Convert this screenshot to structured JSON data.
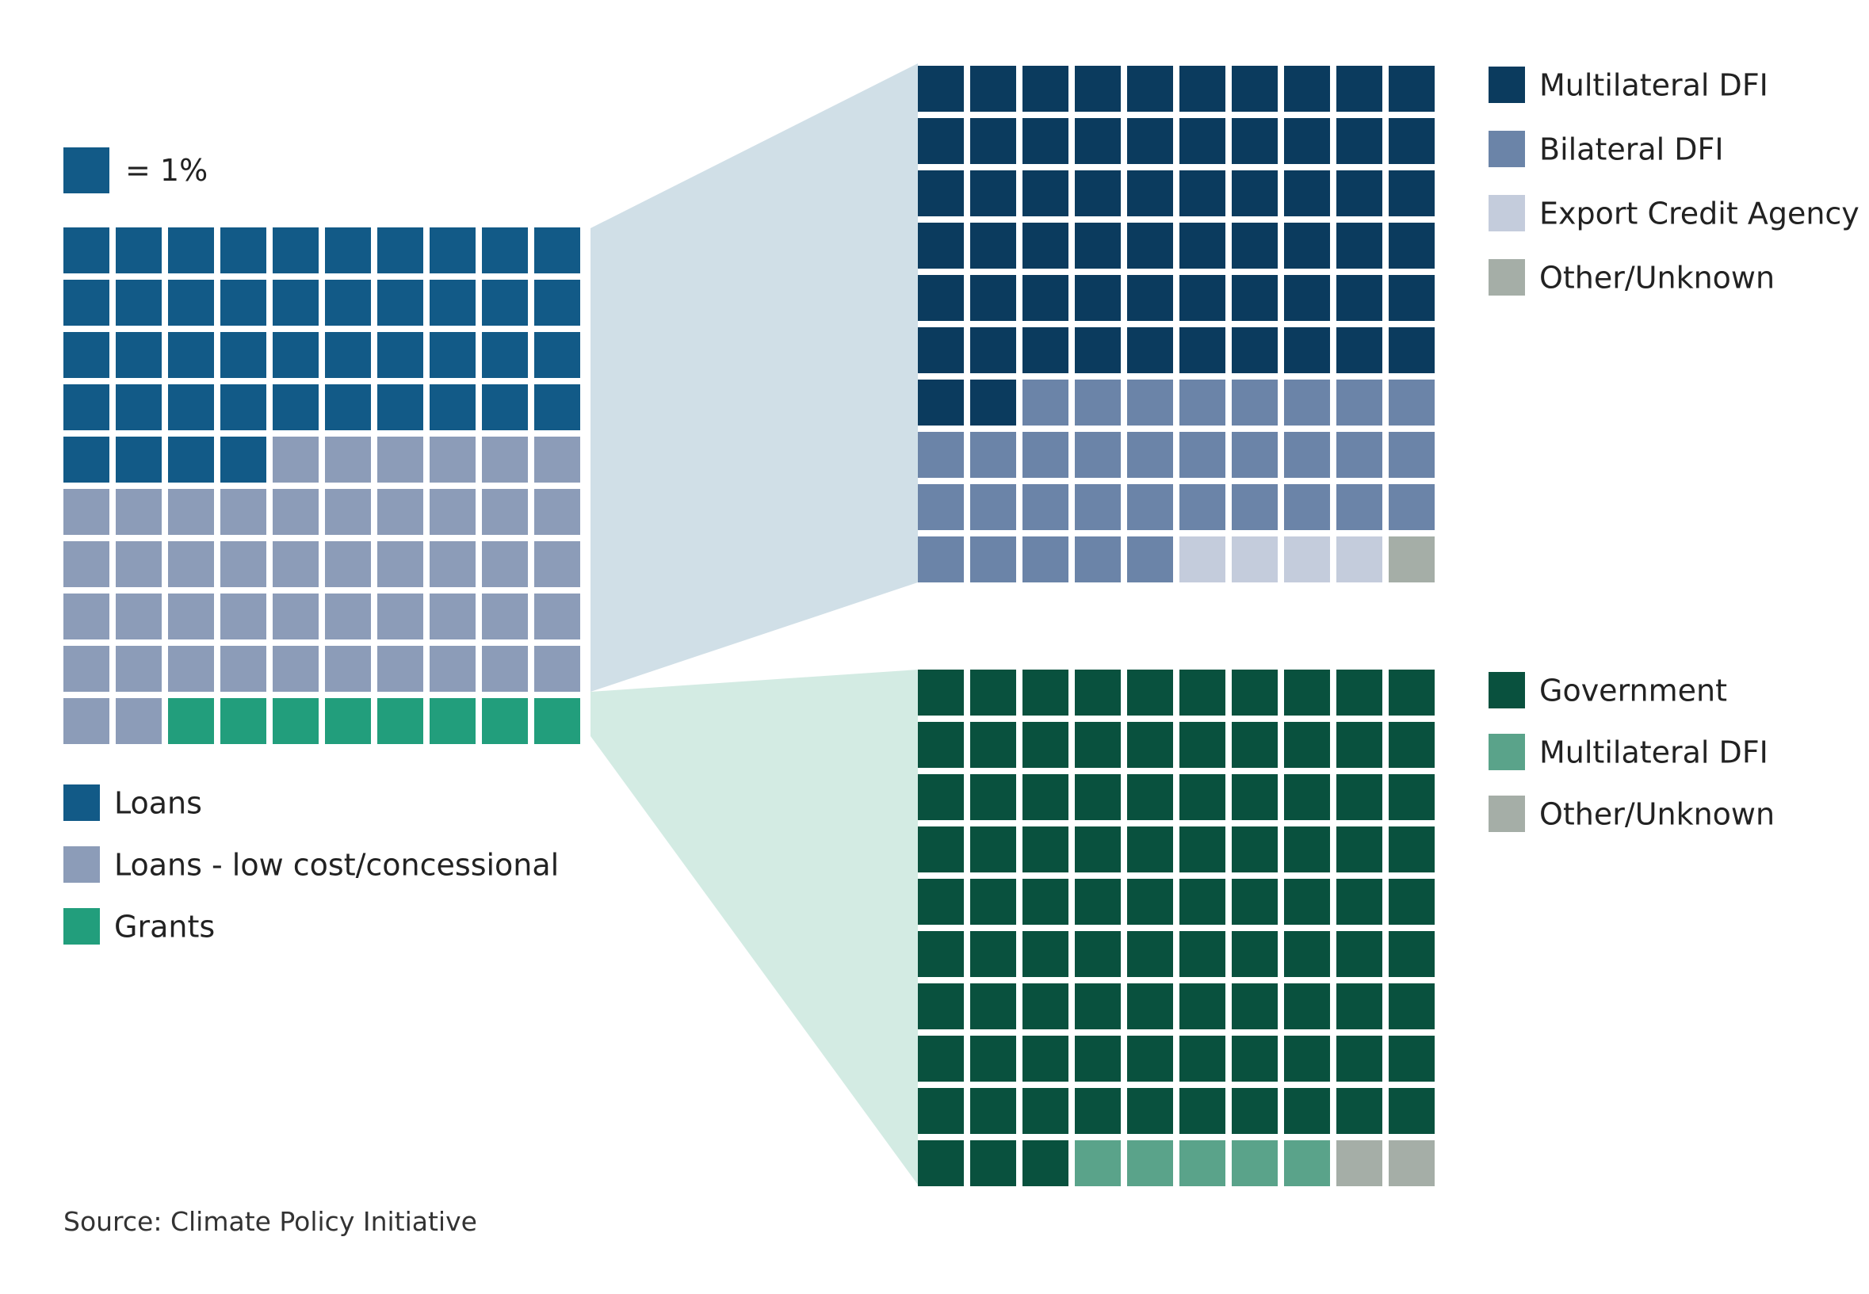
{
  "chart_data": [
    {
      "type": "waffle",
      "unit_label": "= 1%",
      "total": 100,
      "series": [
        {
          "name": "Loans",
          "values": [
            44
          ],
          "color": "#125a87"
        },
        {
          "name": "Loans - low cost/concessional",
          "values": [
            48
          ],
          "color": "#8c9cb8"
        },
        {
          "name": "Grants",
          "values": [
            8
          ],
          "color": "#229e7c"
        }
      ]
    },
    {
      "type": "waffle",
      "total": 100,
      "series": [
        {
          "name": "Multilateral DFI",
          "values": [
            62
          ],
          "color": "#0b3b5e"
        },
        {
          "name": "Bilateral DFI",
          "values": [
            33
          ],
          "color": "#6b84a8"
        },
        {
          "name": "Export Credit Agency",
          "values": [
            4
          ],
          "color": "#c4ccdc"
        },
        {
          "name": "Other/Unknown",
          "values": [
            1
          ],
          "color": "#a5aea7"
        }
      ]
    },
    {
      "type": "waffle",
      "total": 100,
      "series": [
        {
          "name": "Government",
          "values": [
            93
          ],
          "color": "#09513e"
        },
        {
          "name": "Multilateral DFI",
          "values": [
            5
          ],
          "color": "#5aa38a"
        },
        {
          "name": "Other/Unknown",
          "values": [
            2
          ],
          "color": "#a5aea7"
        }
      ]
    }
  ],
  "source": "Source: Climate Policy Initiative",
  "colors": {
    "connector_blue": "#d0dfe7",
    "connector_green": "#d3ebe3"
  }
}
